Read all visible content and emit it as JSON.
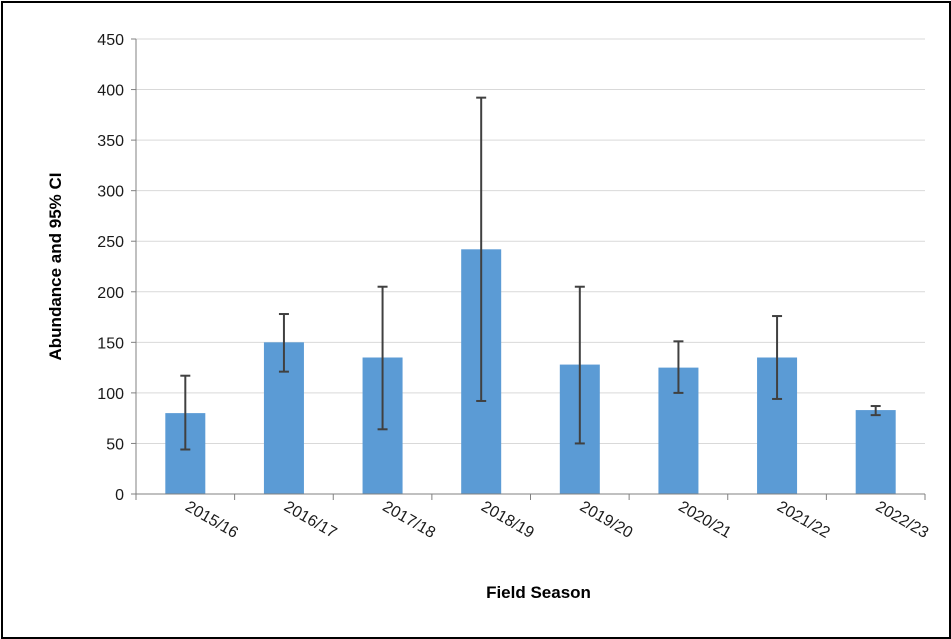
{
  "chart_data": {
    "type": "bar",
    "title": "",
    "xlabel": "Field Season",
    "ylabel": "Abundance and 95% CI",
    "categories": [
      "2015/16",
      "2016/17",
      "2017/18",
      "2018/19",
      "2019/20",
      "2020/21",
      "2021/22",
      "2022/23"
    ],
    "values": [
      80,
      150,
      135,
      242,
      128,
      125,
      135,
      83
    ],
    "ci_lower": [
      44,
      121,
      64,
      92,
      50,
      100,
      94,
      78
    ],
    "ci_upper": [
      117,
      178,
      205,
      392,
      205,
      151,
      176,
      87
    ],
    "ylim": [
      0,
      450
    ],
    "yticks": [
      0,
      50,
      100,
      150,
      200,
      250,
      300,
      350,
      400,
      450
    ],
    "grid": true,
    "legend": "none",
    "bar_color": "#5B9BD5",
    "error_bar_color": "#404040",
    "grid_color": "#d9d9d9"
  }
}
